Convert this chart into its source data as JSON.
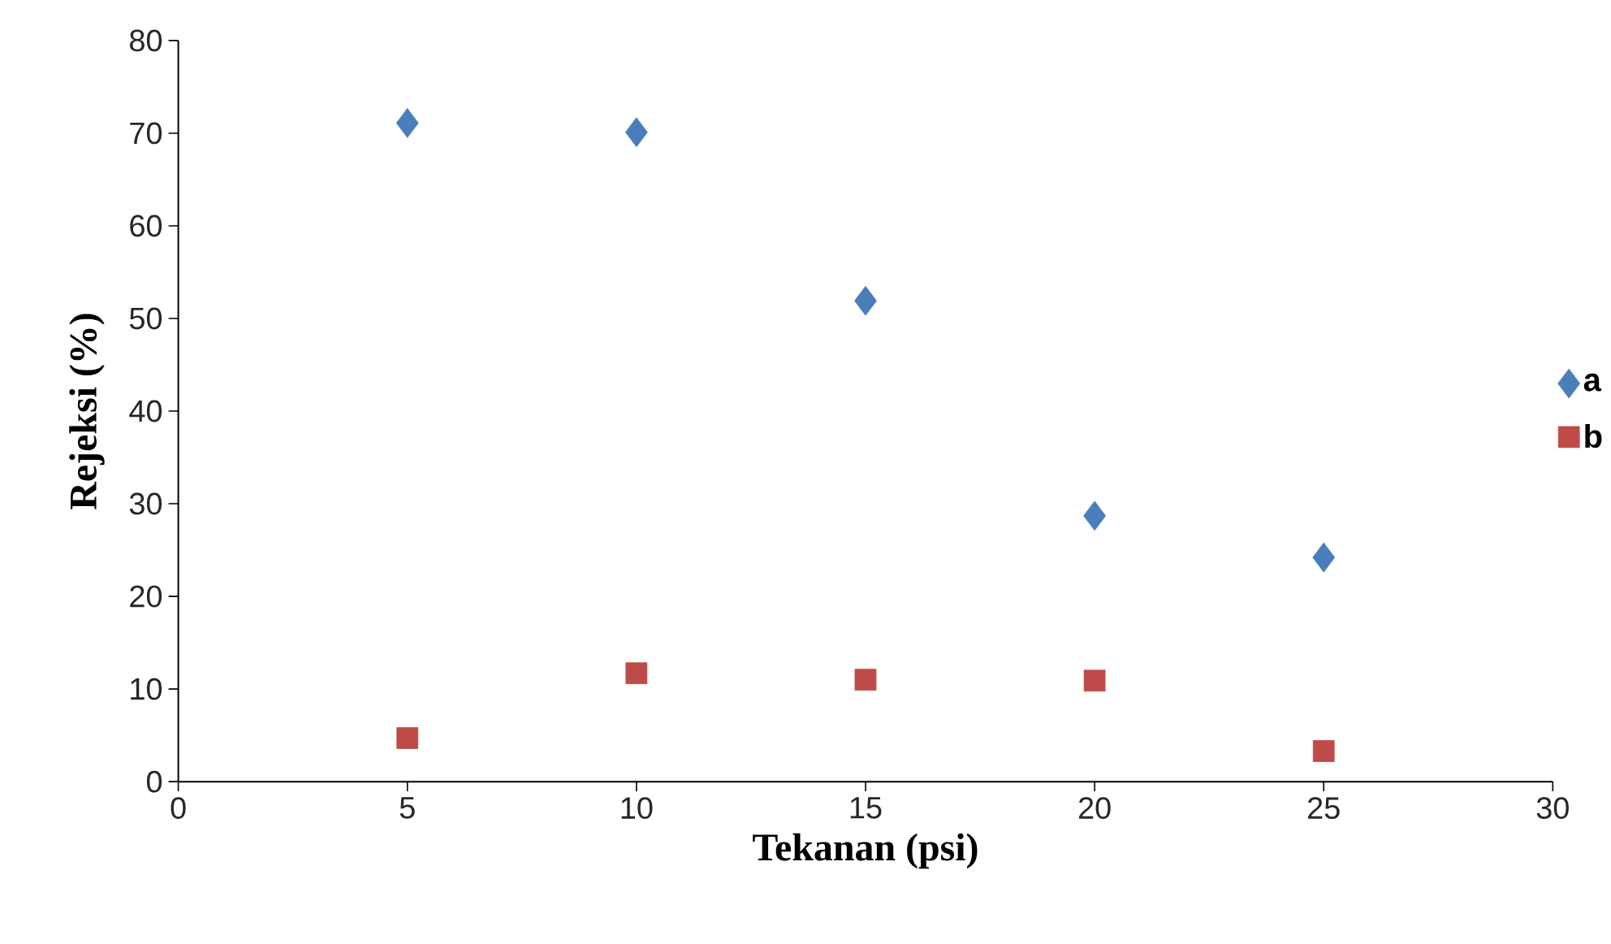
{
  "chart_data": {
    "type": "scatter",
    "xlabel": "Tekanan (psi)",
    "ylabel": "Rejeksi (%)",
    "x": [
      5,
      10,
      15,
      20,
      25
    ],
    "series": [
      {
        "name": "a",
        "color": "#4a7ebb",
        "marker": "diamond",
        "values": [
          71.1,
          70.1,
          51.9,
          28.7,
          24.2
        ]
      },
      {
        "name": "b",
        "color": "#be4b48",
        "marker": "square",
        "values": [
          4.7,
          11.7,
          11.0,
          10.9,
          3.3
        ]
      }
    ],
    "xlim": [
      0,
      30
    ],
    "xticks": [
      0,
      5,
      10,
      15,
      20,
      25,
      30
    ],
    "ylim": [
      0,
      80
    ],
    "yticks": [
      0,
      10,
      20,
      30,
      40,
      50,
      60,
      70,
      80
    ],
    "grid": false,
    "legend": "right"
  }
}
